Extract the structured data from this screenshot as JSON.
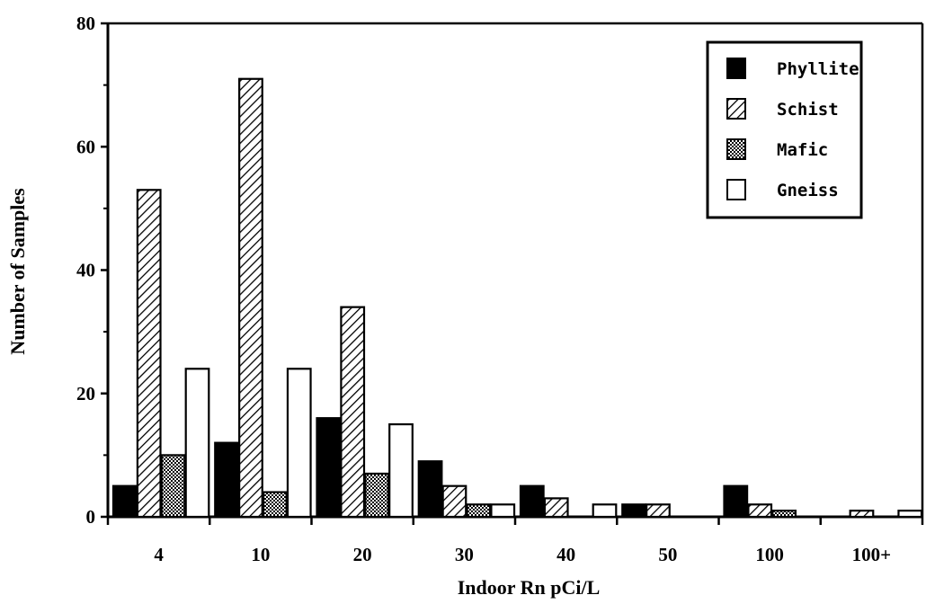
{
  "chart_data": {
    "type": "bar",
    "xlabel": "Indoor Rn pCi/L",
    "ylabel": "Number of Samples",
    "categories": [
      "4",
      "10",
      "20",
      "30",
      "40",
      "50",
      "100",
      "100+"
    ],
    "ylim": [
      0,
      80
    ],
    "yticks": [
      "0",
      "20",
      "40",
      "60",
      "80"
    ],
    "grid": false,
    "legend_position": "top-right",
    "series": [
      {
        "name": "Phyllite",
        "fill": "solid-black",
        "values": [
          5,
          12,
          16,
          9,
          5,
          2,
          5,
          0
        ]
      },
      {
        "name": "Schist",
        "fill": "diagonal-hatch",
        "values": [
          53,
          71,
          34,
          5,
          3,
          2,
          2,
          1
        ]
      },
      {
        "name": "Mafic",
        "fill": "stipple",
        "values": [
          10,
          4,
          7,
          2,
          0,
          0,
          1,
          0
        ]
      },
      {
        "name": "Gneiss",
        "fill": "white",
        "values": [
          24,
          24,
          15,
          2,
          2,
          0,
          0,
          1
        ]
      }
    ]
  }
}
